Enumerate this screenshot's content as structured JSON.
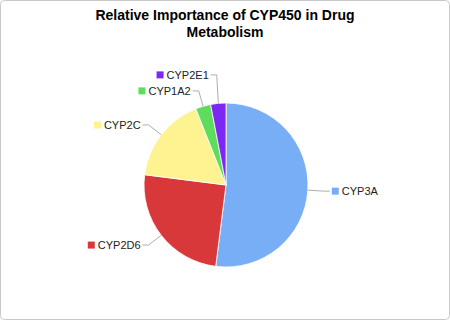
{
  "chart_data": {
    "type": "pie",
    "title": "Relative Importance of CYP450 in Drug Metabolism",
    "categories": [
      "CYP3A",
      "CYP2D6",
      "CYP2C",
      "CYP1A2",
      "CYP2E1"
    ],
    "values": [
      52,
      25,
      17,
      3,
      3
    ],
    "colors": [
      "#78aef5",
      "#d9383a",
      "#fdf391",
      "#5fdc5b",
      "#7c28f2"
    ]
  }
}
